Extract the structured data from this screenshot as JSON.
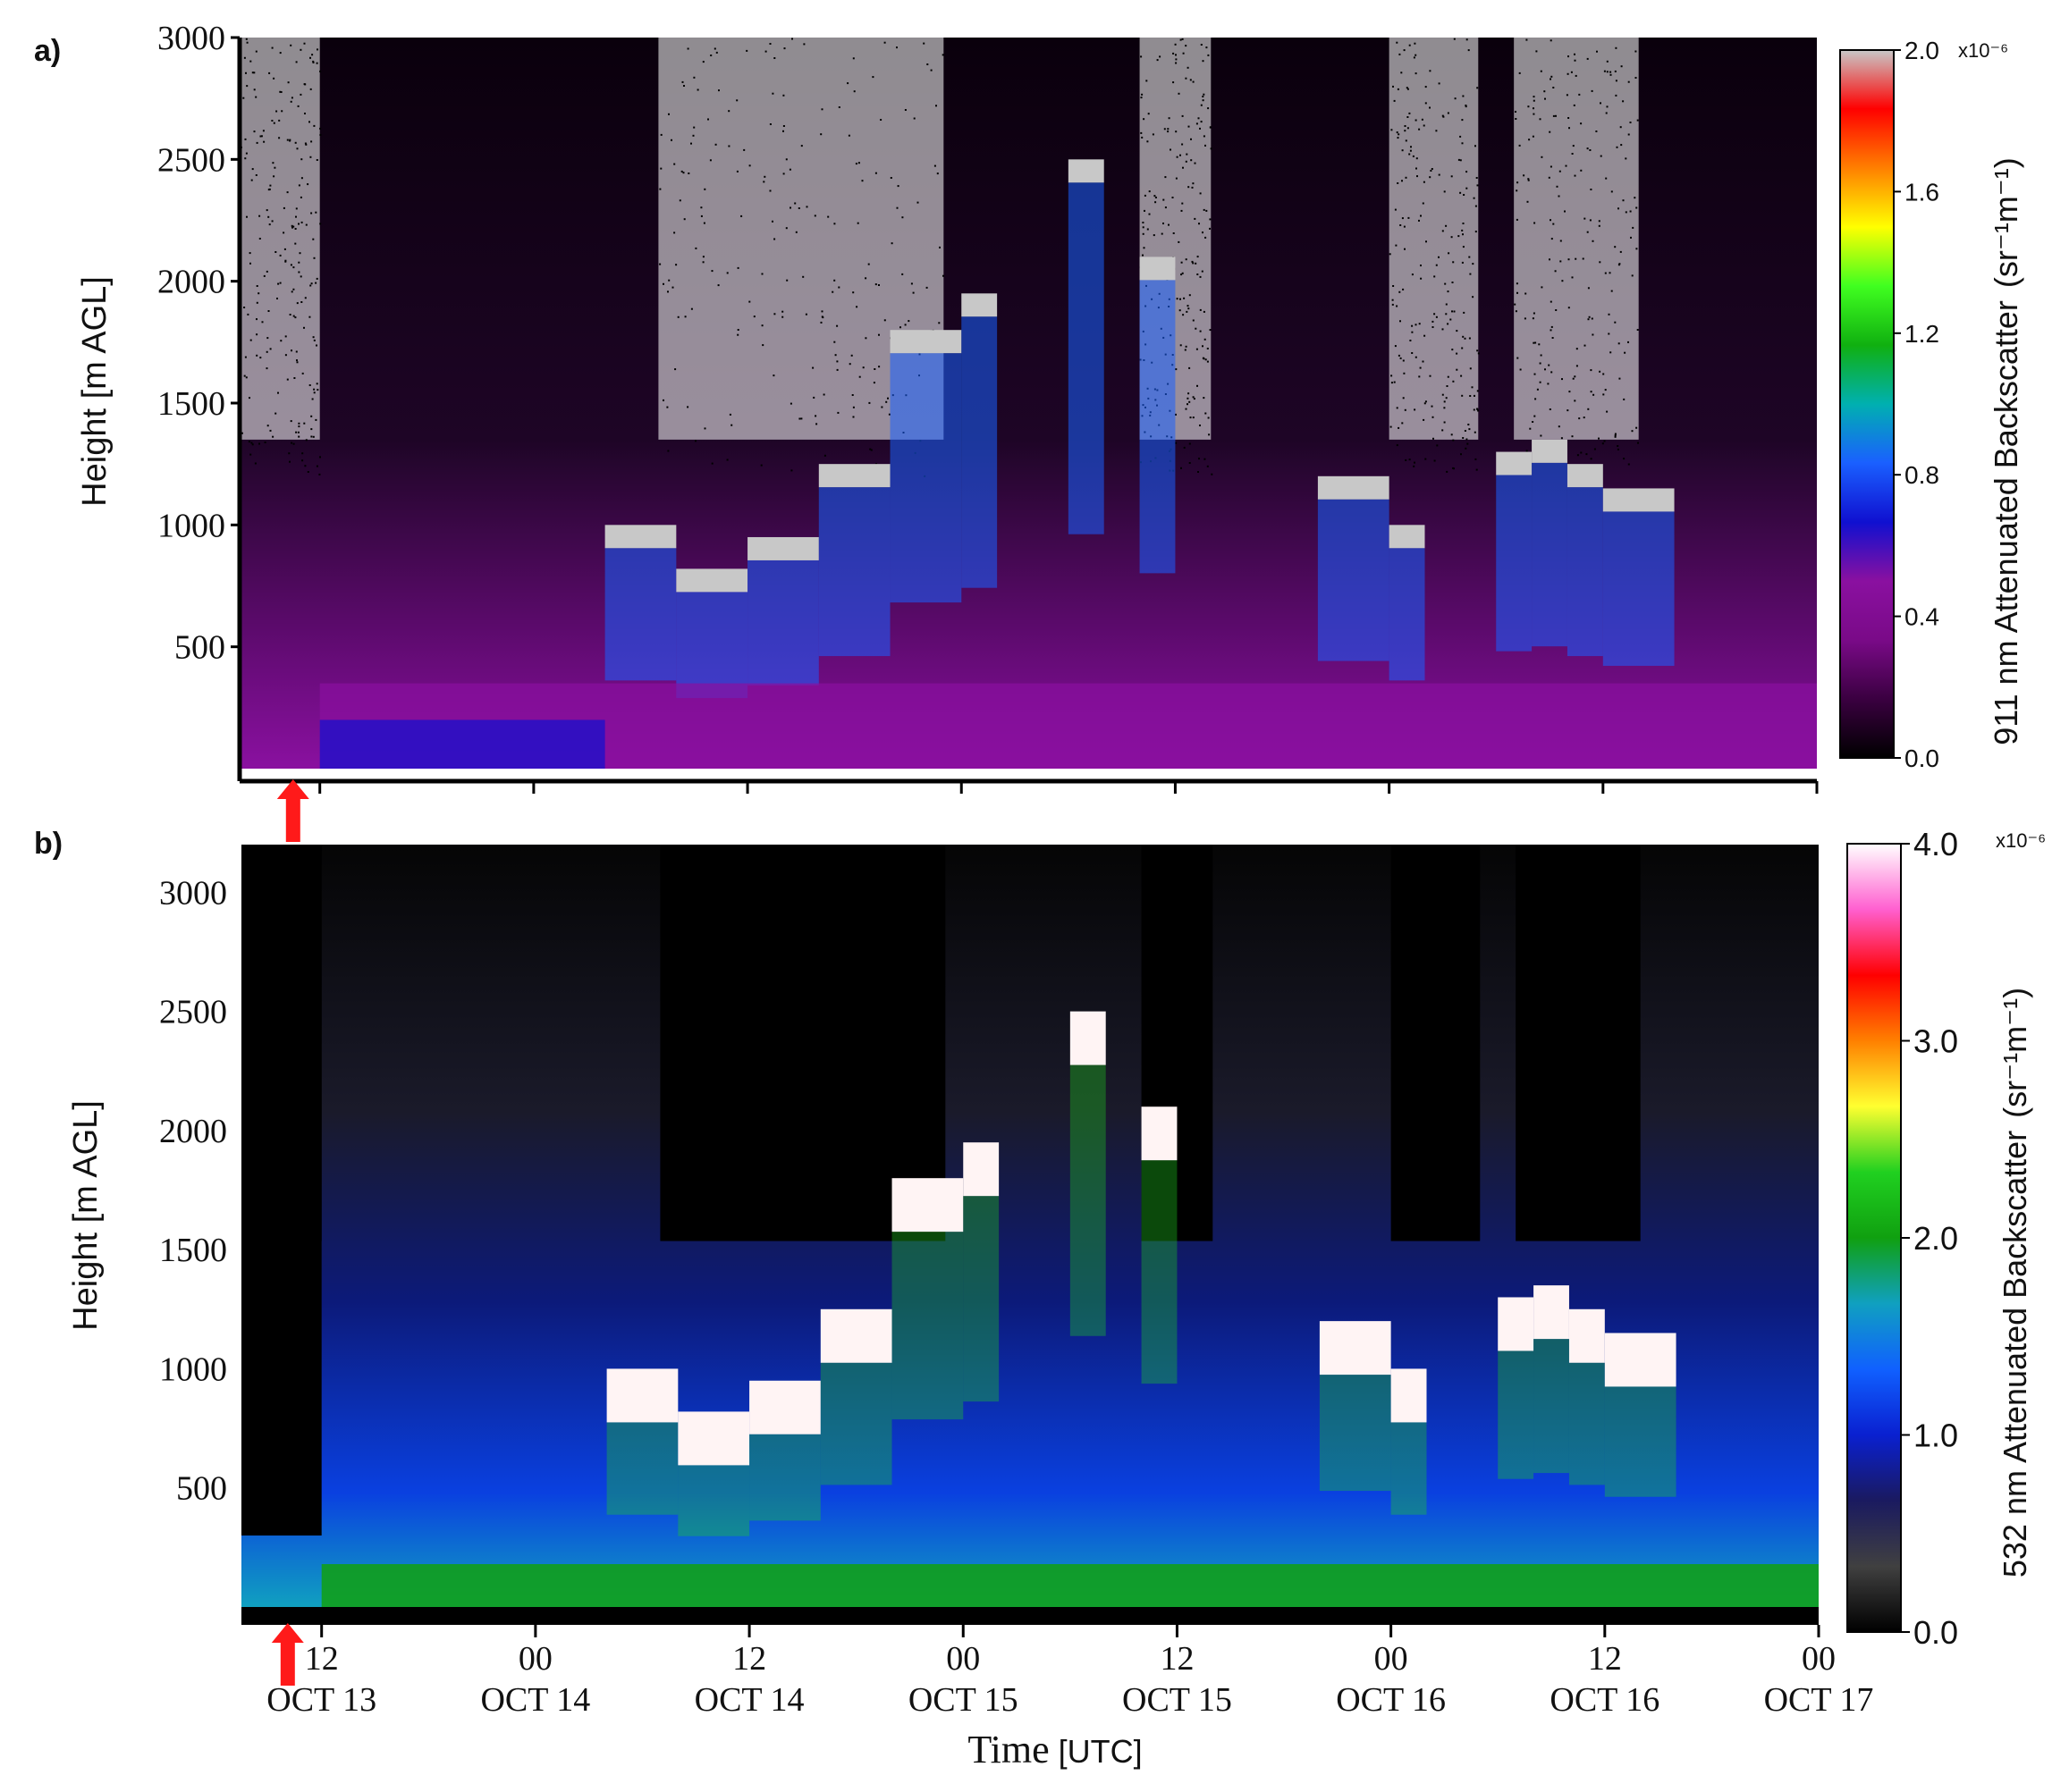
{
  "chart_data": [
    {
      "panel_label": "a)",
      "type": "heatmap",
      "ylabel": "Height [m AGL]",
      "yticks": [
        "3000",
        "2500",
        "2000",
        "1500",
        "1000",
        "500"
      ],
      "ytick_values": [
        3000,
        2500,
        2000,
        1500,
        1000,
        500
      ],
      "ylim": [
        0,
        3000
      ],
      "colorbar": {
        "label": "911 nm Attenuated Backscatter",
        "unit": "(sr⁻¹m⁻¹)",
        "multiplier": "x10⁻⁶",
        "ticks": [
          "2.0",
          "1.6",
          "1.2",
          "0.8",
          "0.4",
          "0.0"
        ],
        "tick_values": [
          2.0,
          1.6,
          1.2,
          0.8,
          0.4,
          0.0
        ],
        "range": [
          0.0,
          2.0
        ],
        "colors": [
          "#000000",
          "#3a0040",
          "#7a0a88",
          "#8a10a0",
          "#1010d0",
          "#1a60ff",
          "#00b0b0",
          "#10b010",
          "#40ff20",
          "#ffff00",
          "#ff8000",
          "#ff0000",
          "#c8c8c8"
        ]
      },
      "arrow_color": "#ff1a1a",
      "arrow_time_hours": 10.5,
      "cloud_top_profile": {
        "time_hours": [
          0,
          4,
          8,
          12,
          16,
          20,
          24,
          28,
          32,
          36,
          40,
          44,
          48,
          50,
          52,
          54,
          56,
          58,
          60,
          64,
          68,
          72,
          74,
          76,
          78,
          80,
          82,
          84,
          88,
          92,
          96
        ],
        "cloud_base_m": [
          null,
          null,
          null,
          null,
          null,
          null,
          null,
          1000,
          820,
          950,
          1250,
          1800,
          1950,
          null,
          null,
          2500,
          null,
          2100,
          null,
          null,
          1200,
          1000,
          null,
          null,
          1300,
          1350,
          1250,
          1150,
          null,
          null,
          null
        ]
      }
    },
    {
      "panel_label": "b)",
      "type": "heatmap",
      "ylabel": "Height [m AGL]",
      "xlabel": "Time",
      "xlabel_unit": "[UTC]",
      "yticks": [
        "3000",
        "2500",
        "2000",
        "1500",
        "1000",
        "500"
      ],
      "ytick_values": [
        3000,
        2500,
        2000,
        1500,
        1000,
        500
      ],
      "ylim": [
        0,
        3200
      ],
      "xticks_hour": [
        "12",
        "00",
        "12",
        "00",
        "12",
        "00",
        "12",
        "00"
      ],
      "xticks_date": [
        "OCT 13",
        "OCT 14",
        "OCT 14",
        "OCT 15",
        "OCT 15",
        "OCT 16",
        "OCT 16",
        "OCT 17"
      ],
      "xtick_times_hours": [
        12,
        24,
        36,
        48,
        60,
        72,
        84,
        96
      ],
      "xlim_hours": [
        7.5,
        96
      ],
      "colorbar": {
        "label": "532 nm Attenuated Backscatter",
        "unit": "(sr⁻¹m⁻¹)",
        "multiplier": "x10⁻⁶",
        "ticks": [
          "4.0",
          "3.0",
          "2.0",
          "1.0",
          "0.0"
        ],
        "tick_values": [
          4.0,
          3.0,
          2.0,
          1.0,
          0.0
        ],
        "range": [
          0.0,
          4.0
        ],
        "colors": [
          "#000000",
          "#404040",
          "#1a1a60",
          "#0a20d0",
          "#1060ff",
          "#10a0c0",
          "#10a010",
          "#20d020",
          "#ffff30",
          "#ff8000",
          "#ff0000",
          "#ff60d0",
          "#ffffff"
        ]
      },
      "arrow_color": "#ff1a1a",
      "arrow_time_hours": 10.5
    }
  ]
}
